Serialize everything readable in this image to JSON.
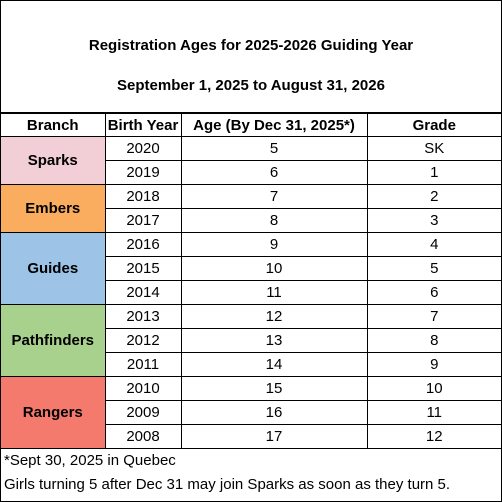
{
  "header": {
    "title": "Registration Ages for 2025-2026 Guiding Year",
    "subtitle": "September 1, 2025 to August 31, 2026"
  },
  "table": {
    "columns": [
      "Branch",
      "Birth Year",
      "Age (By Dec 31, 2025*)",
      "Grade"
    ],
    "branches": [
      {
        "name": "Sparks",
        "color": "#f2cfd6",
        "rows": [
          [
            2020,
            5,
            "SK"
          ],
          [
            2019,
            6,
            1
          ]
        ]
      },
      {
        "name": "Embers",
        "color": "#fbad5f",
        "rows": [
          [
            2018,
            7,
            2
          ],
          [
            2017,
            8,
            3
          ]
        ]
      },
      {
        "name": "Guides",
        "color": "#9dc3e6",
        "rows": [
          [
            2016,
            9,
            4
          ],
          [
            2015,
            10,
            5
          ],
          [
            2014,
            11,
            6
          ]
        ]
      },
      {
        "name": "Pathfinders",
        "color": "#a9d18e",
        "rows": [
          [
            2013,
            12,
            7
          ],
          [
            2012,
            13,
            8
          ],
          [
            2011,
            14,
            9
          ]
        ]
      },
      {
        "name": "Rangers",
        "color": "#f47a6e",
        "rows": [
          [
            2010,
            15,
            10
          ],
          [
            2009,
            16,
            11
          ],
          [
            2008,
            17,
            12
          ]
        ]
      }
    ]
  },
  "footnotes": [
    "*Sept 30, 2025 in Quebec",
    "Girls turning 5 after Dec 31 may join Sparks as soon as they turn 5."
  ]
}
